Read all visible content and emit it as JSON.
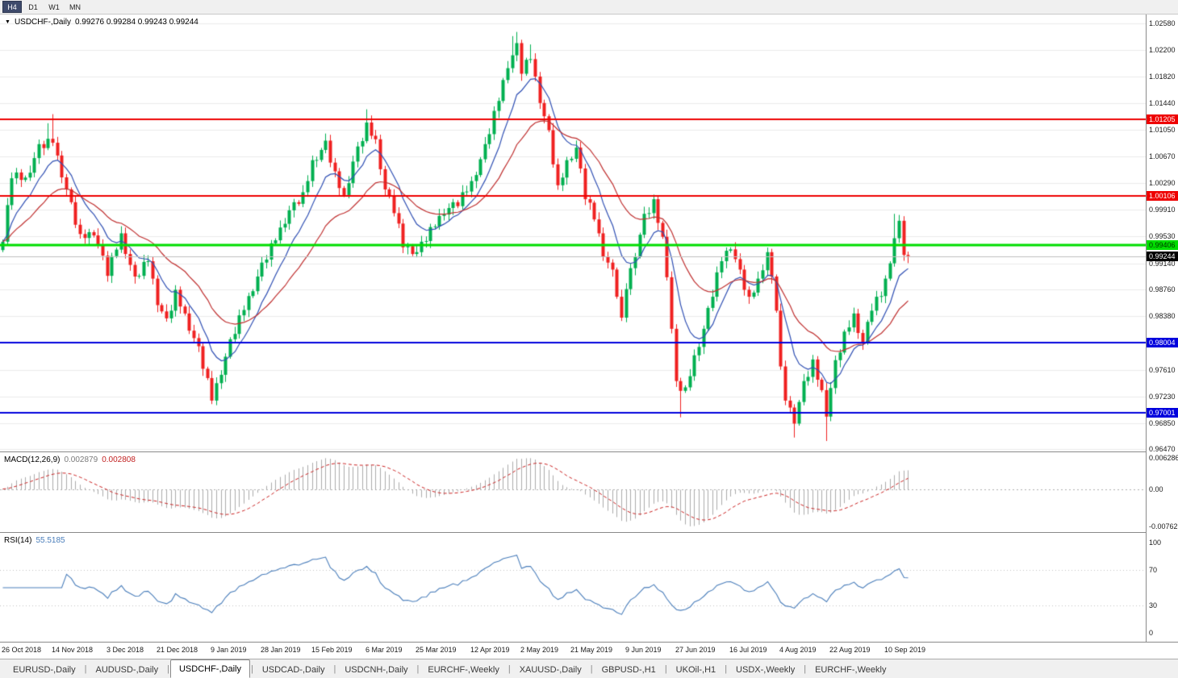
{
  "toolbar": {
    "timeframes": [
      {
        "label": "H4",
        "active": true
      },
      {
        "label": "D1",
        "active": false
      },
      {
        "label": "W1",
        "active": false
      },
      {
        "label": "MN",
        "active": false
      }
    ]
  },
  "chart": {
    "symbol_title": "USDCHF-,Daily",
    "quote_line": "0.99276 0.99284 0.99243 0.99244",
    "quote": {
      "open": "0.99276",
      "high": "0.99284",
      "low": "0.99243",
      "close": "0.99244"
    },
    "current_price": 0.99244,
    "price_axis_labels": [
      "1.02580",
      "1.02200",
      "1.01820",
      "1.01440",
      "1.01050",
      "1.00670",
      "1.00290",
      "0.99910",
      "0.99530",
      "0.99140",
      "0.98760",
      "0.98380",
      "0.97610",
      "0.97230",
      "0.96850",
      "0.96470"
    ],
    "price_badges": [
      {
        "text": "1.01205",
        "bg": "#ee0000",
        "fg": "#ffffff"
      },
      {
        "text": "1.00106",
        "bg": "#ee0000",
        "fg": "#ffffff"
      },
      {
        "text": "0.99406",
        "bg": "#00dd00",
        "fg": "#003300"
      },
      {
        "text": "0.99244",
        "bg": "#000000",
        "fg": "#ffffff"
      },
      {
        "text": "0.98004",
        "bg": "#0000dd",
        "fg": "#ffffff"
      },
      {
        "text": "0.97001",
        "bg": "#0000dd",
        "fg": "#ffffff"
      }
    ],
    "levels": [
      {
        "price": 1.01205,
        "color": "#ee0000",
        "width": 2
      },
      {
        "price": 1.00106,
        "color": "#ee0000",
        "width": 2
      },
      {
        "price": 0.99406,
        "color": "#00dd00",
        "width": 3
      },
      {
        "price": 0.98004,
        "color": "#0000dd",
        "width": 2
      },
      {
        "price": 0.97001,
        "color": "#0000dd",
        "width": 2
      }
    ]
  },
  "chart_data": {
    "type": "candlestick",
    "symbol": "USDCHF",
    "timeframe": "Daily",
    "title": "USDCHF-,Daily",
    "ohlc_current": {
      "open": 0.99276,
      "high": 0.99284,
      "low": 0.99243,
      "close": 0.99244
    },
    "y_range": [
      0.9644,
      1.0271
    ],
    "x_labels": [
      "26 Oct 2018",
      "14 Nov 2018",
      "3 Dec 2018",
      "21 Dec 2018",
      "9 Jan 2019",
      "28 Jan 2019",
      "15 Feb 2019",
      "6 Mar 2019",
      "25 Mar 2019",
      "12 Apr 2019",
      "2 May 2019",
      "21 May 2019",
      "9 Jun 2019",
      "27 Jun 2019",
      "16 Jul 2019",
      "4 Aug 2019",
      "22 Aug 2019",
      "10 Sep 2019"
    ],
    "support_resistance": [
      1.01205,
      1.00106,
      0.99406,
      0.98004,
      0.97001
    ],
    "price_path": [
      [
        0,
        0.9945
      ],
      [
        2,
        1.004
      ],
      [
        5,
        1.0035
      ],
      [
        8,
        1.008
      ],
      [
        11,
        1.009
      ],
      [
        14,
        1.002
      ],
      [
        17,
        0.995
      ],
      [
        20,
        0.996
      ],
      [
        23,
        0.99
      ],
      [
        26,
        0.9955
      ],
      [
        29,
        0.989
      ],
      [
        32,
        0.992
      ],
      [
        34,
        0.986
      ],
      [
        36,
        0.983
      ],
      [
        38,
        0.987
      ],
      [
        40,
        0.984
      ],
      [
        43,
        0.979
      ],
      [
        46,
        0.972
      ],
      [
        48,
        0.976
      ],
      [
        50,
        0.98
      ],
      [
        53,
        0.985
      ],
      [
        57,
        0.991
      ],
      [
        60,
        0.995
      ],
      [
        63,
        0.999
      ],
      [
        66,
        1.001
      ],
      [
        68,
        1.006
      ],
      [
        71,
        1.0085
      ],
      [
        73,
        1.004
      ],
      [
        75,
        1.001
      ],
      [
        77,
        1.006
      ],
      [
        80,
        1.011
      ],
      [
        82,
        1.009
      ],
      [
        84,
        1.002
      ],
      [
        86,
        0.999
      ],
      [
        88,
        0.994
      ],
      [
        91,
        0.993
      ],
      [
        94,
        0.996
      ],
      [
        97,
        0.999
      ],
      [
        100,
        1.0
      ],
      [
        103,
        1.003
      ],
      [
        106,
        1.008
      ],
      [
        109,
        1.015
      ],
      [
        111,
        1.02
      ],
      [
        113,
        1.0225
      ],
      [
        114,
        1.019
      ],
      [
        116,
        1.021
      ],
      [
        118,
        1.015
      ],
      [
        120,
        1.01
      ],
      [
        122,
        1.002
      ],
      [
        124,
        1.006
      ],
      [
        126,
        1.008
      ],
      [
        128,
        1.001
      ],
      [
        130,
        0.998
      ],
      [
        132,
        0.993
      ],
      [
        134,
        0.99
      ],
      [
        135,
        0.987
      ],
      [
        136,
        0.983
      ],
      [
        137,
        0.988
      ],
      [
        139,
        0.993
      ],
      [
        141,
        0.998
      ],
      [
        143,
        1.0
      ],
      [
        145,
        0.995
      ],
      [
        146,
        0.99
      ],
      [
        147,
        0.982
      ],
      [
        148,
        0.974
      ],
      [
        150,
        0.973
      ],
      [
        152,
        0.978
      ],
      [
        154,
        0.982
      ],
      [
        156,
        0.987
      ],
      [
        158,
        0.992
      ],
      [
        160,
        0.994
      ],
      [
        162,
        0.99
      ],
      [
        164,
        0.986
      ],
      [
        166,
        0.989
      ],
      [
        168,
        0.993
      ],
      [
        170,
        0.985
      ],
      [
        171,
        0.976
      ],
      [
        172,
        0.972
      ],
      [
        174,
        0.969
      ],
      [
        176,
        0.974
      ],
      [
        178,
        0.977
      ],
      [
        180,
        0.973
      ],
      [
        181,
        0.97
      ],
      [
        183,
        0.977
      ],
      [
        185,
        0.981
      ],
      [
        187,
        0.984
      ],
      [
        189,
        0.98
      ],
      [
        191,
        0.985
      ],
      [
        193,
        0.987
      ],
      [
        194,
        0.989
      ],
      [
        196,
        0.995
      ],
      [
        197,
        0.997
      ],
      [
        198,
        0.993
      ],
      [
        199,
        0.99244
      ]
    ],
    "extremes": [
      {
        "i": 10,
        "high": 1.0115
      },
      {
        "i": 11,
        "high": 1.0128
      },
      {
        "i": 46,
        "low": 0.9712
      },
      {
        "i": 80,
        "high": 1.0135
      },
      {
        "i": 112,
        "high": 1.024
      },
      {
        "i": 113,
        "high": 1.0246
      },
      {
        "i": 116,
        "high": 1.0228
      },
      {
        "i": 143,
        "high": 1.0008
      },
      {
        "i": 149,
        "low": 0.9693
      },
      {
        "i": 174,
        "low": 0.9664
      },
      {
        "i": 181,
        "low": 0.9659
      },
      {
        "i": 196,
        "high": 0.9985
      },
      {
        "i": 197,
        "high": 0.9983
      }
    ]
  },
  "macd": {
    "label": "MACD(12,26,9)",
    "value_main": "0.002879",
    "value_signal": "0.002808",
    "axis_labels": [
      "0.006286",
      "0.00",
      "-0.00762"
    ],
    "fast": 12,
    "slow": 26,
    "signal": 9
  },
  "rsi": {
    "label": "RSI(14)",
    "value": "55.5185",
    "axis_labels": [
      "100",
      "70",
      "30",
      "0"
    ],
    "period": 14,
    "levels": [
      70,
      30
    ]
  },
  "tabs": {
    "items": [
      "EURUSD-,Daily",
      "AUDUSD-,Daily",
      "USDCHF-,Daily",
      "USDCAD-,Daily",
      "USDCNH-,Daily",
      "EURCHF-,Weekly",
      "XAUUSD-,Daily",
      "GBPUSD-,H1",
      "UKOil-,H1",
      "USDX-,Weekly",
      "EURCHF-,Weekly"
    ],
    "active_index": 2
  },
  "colors": {
    "candle_up": "#00b050",
    "candle_down": "#f02020",
    "ma_fast": "#3050b4",
    "ma_slow": "#c03030",
    "macd_hist": "#ababab",
    "macd_signal": "#cc2222",
    "rsi_line": "#4a7ebb",
    "current_price_line": "#c0c0c0",
    "grid": "#ebebeb",
    "axis_border": "#8a8a8a"
  }
}
